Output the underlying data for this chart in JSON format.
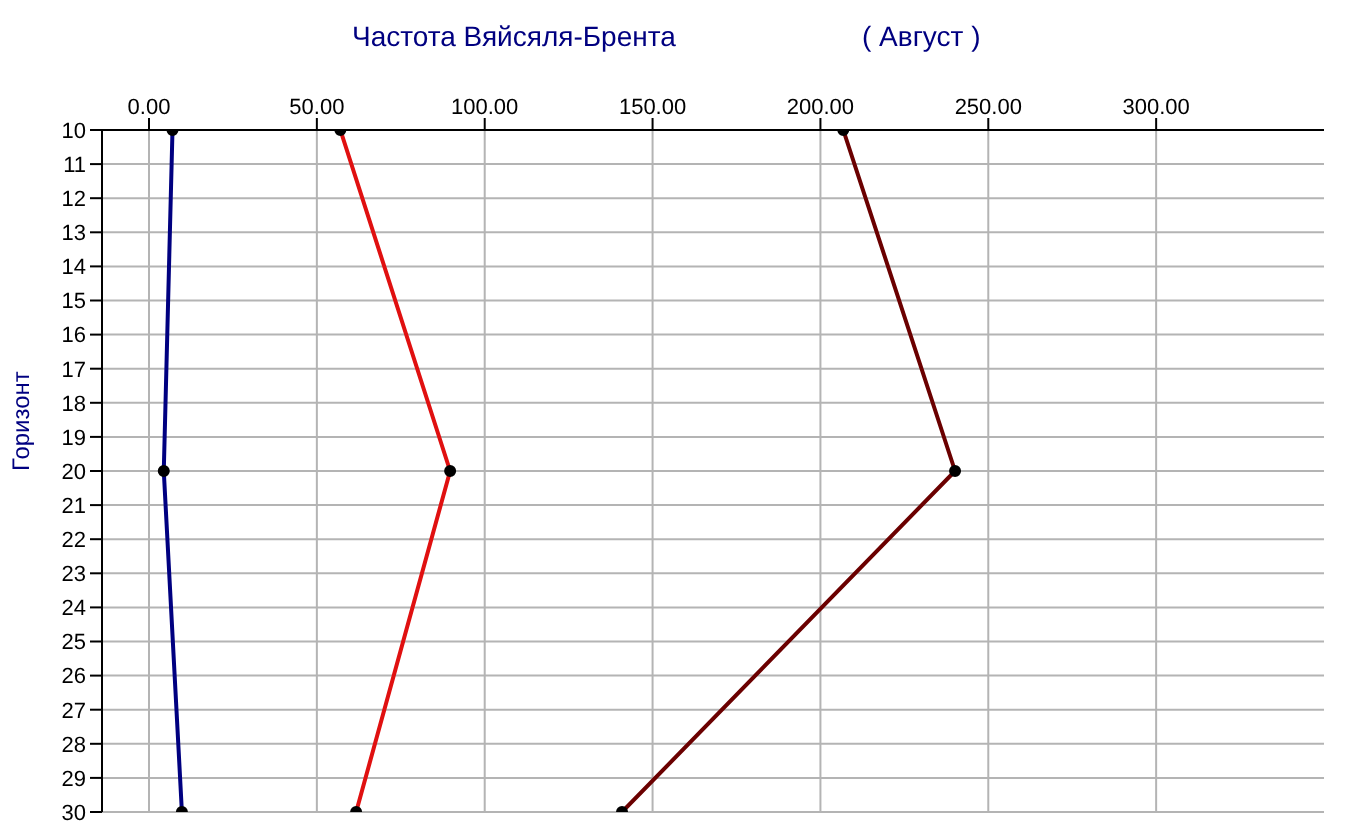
{
  "chart_data": {
    "type": "line",
    "title": "Частота Вяйсяля-Брента",
    "subtitle": "( Август )",
    "ylabel": "Горизонт",
    "x": [
      10,
      20,
      30
    ],
    "series": [
      {
        "color": "#000080",
        "values": [
          7,
          4.4,
          9.8
        ]
      },
      {
        "color": "#e01010",
        "values": [
          57,
          89.7,
          61.7
        ]
      },
      {
        "color": "#6b0000",
        "values": [
          206.8,
          240.1,
          140.9
        ]
      }
    ],
    "xlim": [
      -14,
      350
    ],
    "xticks": [
      {
        "value": 0,
        "label": "0.00"
      },
      {
        "value": 50,
        "label": "50.00"
      },
      {
        "value": 100,
        "label": "100.00"
      },
      {
        "value": 150,
        "label": "150.00"
      },
      {
        "value": 200,
        "label": "200.00"
      },
      {
        "value": 250,
        "label": "250.00"
      },
      {
        "value": 300,
        "label": "300.00"
      }
    ],
    "ylim": [
      30,
      10
    ],
    "yticks": [
      10,
      11,
      12,
      13,
      14,
      15,
      16,
      17,
      18,
      19,
      20,
      21,
      22,
      23,
      24,
      25,
      26,
      27,
      28,
      29,
      30
    ],
    "orientation": "horizontal",
    "grid": true,
    "marker": "circle",
    "line_style": "solid"
  }
}
